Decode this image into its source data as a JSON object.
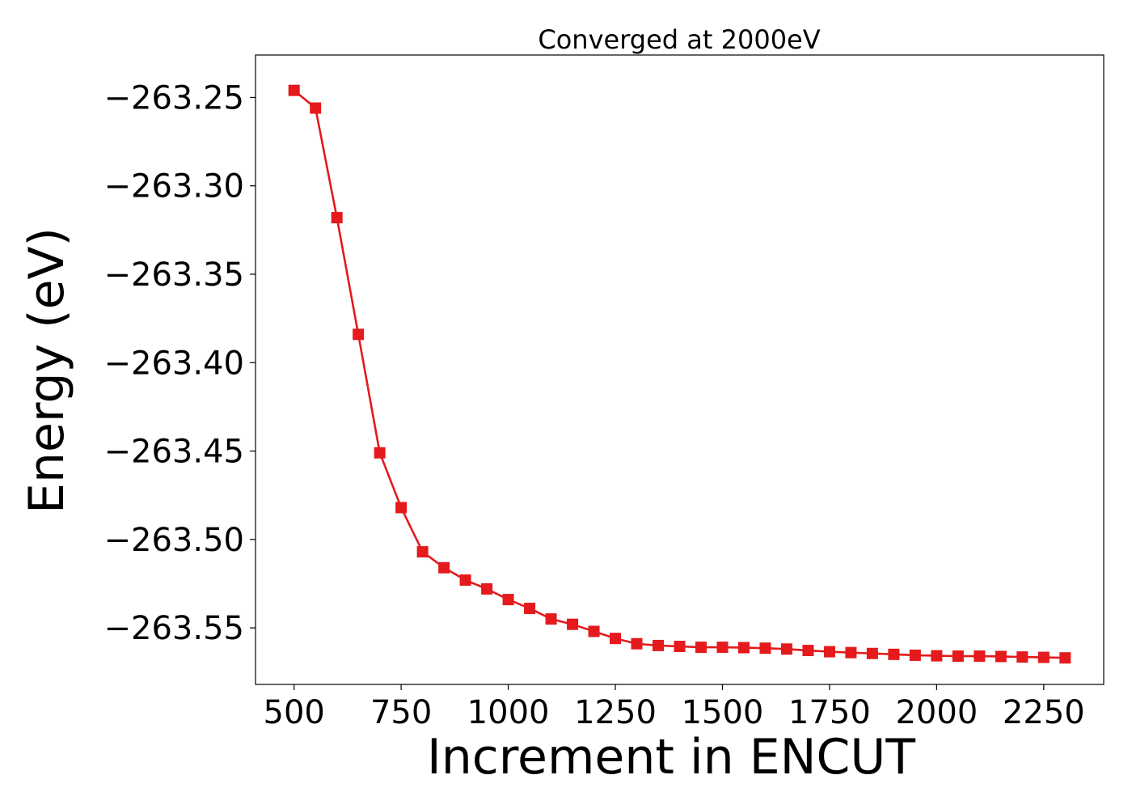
{
  "chart_data": {
    "type": "line",
    "title": "Converged at 2000eV",
    "xlabel": "Increment in ENCUT",
    "ylabel": "Energy (eV)",
    "xlim": [
      410,
      2390
    ],
    "ylim": [
      -263.582,
      -263.226
    ],
    "xticks": [
      500,
      750,
      1000,
      1250,
      1500,
      1750,
      2000,
      2250
    ],
    "yticks": [
      -263.25,
      -263.3,
      -263.35,
      -263.4,
      -263.45,
      -263.5,
      -263.55
    ],
    "ytick_labels": [
      "−263.25",
      "−263.30",
      "−263.35",
      "−263.40",
      "−263.45",
      "−263.50",
      "−263.55"
    ],
    "grid": false,
    "legend": "none",
    "marker": "square",
    "color": "#e41a1c",
    "series": [
      {
        "x": [
          500,
          550,
          600,
          650,
          700,
          750,
          800,
          850,
          900,
          950,
          1000,
          1050,
          1100,
          1150,
          1200,
          1250,
          1300,
          1350,
          1400,
          1450,
          1500,
          1550,
          1600,
          1650,
          1700,
          1750,
          1800,
          1850,
          1900,
          1950,
          2000,
          2050,
          2100,
          2150,
          2200,
          2250,
          2300
        ],
        "values": [
          -263.246,
          -263.256,
          -263.318,
          -263.384,
          -263.451,
          -263.482,
          -263.507,
          -263.516,
          -263.523,
          -263.528,
          -263.534,
          -263.539,
          -263.545,
          -263.548,
          -263.552,
          -263.556,
          -263.559,
          -263.56,
          -263.5605,
          -263.561,
          -263.561,
          -263.5612,
          -263.5615,
          -263.562,
          -263.5628,
          -263.5635,
          -263.564,
          -263.5645,
          -263.565,
          -263.5655,
          -263.5658,
          -263.566,
          -263.566,
          -263.5662,
          -263.5665,
          -263.5667,
          -263.567
        ]
      }
    ]
  }
}
